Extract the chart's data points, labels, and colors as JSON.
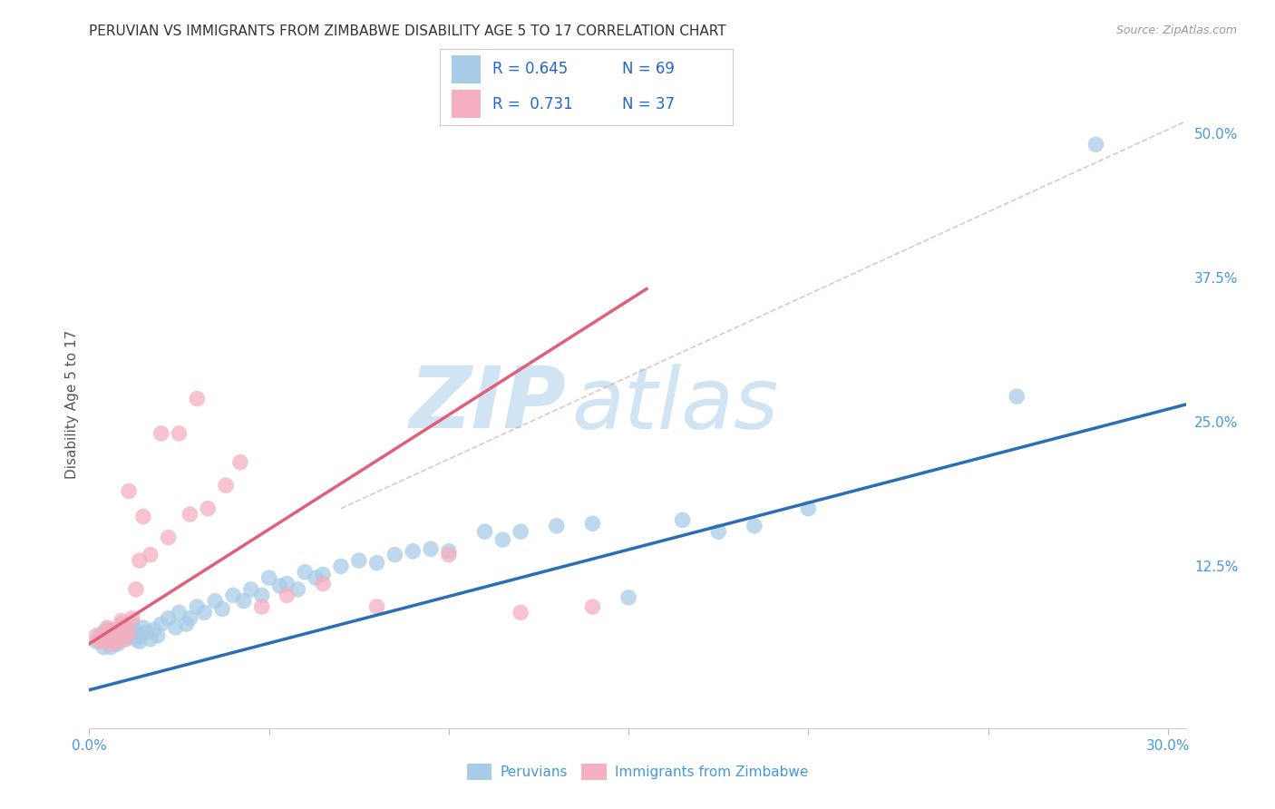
{
  "title": "PERUVIAN VS IMMIGRANTS FROM ZIMBABWE DISABILITY AGE 5 TO 17 CORRELATION CHART",
  "source": "Source: ZipAtlas.com",
  "ylabel": "Disability Age 5 to 17",
  "xlim": [
    0.0,
    0.305
  ],
  "ylim": [
    -0.015,
    0.545
  ],
  "xticks": [
    0.0,
    0.05,
    0.1,
    0.15,
    0.2,
    0.25,
    0.3
  ],
  "yticks_right": [
    0.0,
    0.125,
    0.25,
    0.375,
    0.5
  ],
  "yticklabels_right": [
    "",
    "12.5%",
    "25.0%",
    "37.5%",
    "50.0%"
  ],
  "blue_R": 0.645,
  "blue_N": 69,
  "pink_R": 0.731,
  "pink_N": 37,
  "blue_color": "#a8cce8",
  "pink_color": "#f4afc0",
  "blue_line_color": "#2a6fb5",
  "pink_line_color": "#e0607a",
  "axis_label_color": "#4499dd",
  "legend_text_color": "#2266cc",
  "watermark_color": "#d0e4f4",
  "blue_scatter_x": [
    0.002,
    0.003,
    0.004,
    0.004,
    0.005,
    0.005,
    0.006,
    0.006,
    0.007,
    0.007,
    0.008,
    0.008,
    0.009,
    0.009,
    0.01,
    0.01,
    0.011,
    0.011,
    0.012,
    0.012,
    0.013,
    0.013,
    0.014,
    0.014,
    0.015,
    0.016,
    0.017,
    0.018,
    0.019,
    0.02,
    0.022,
    0.024,
    0.025,
    0.027,
    0.028,
    0.03,
    0.032,
    0.035,
    0.037,
    0.04,
    0.043,
    0.045,
    0.048,
    0.05,
    0.053,
    0.055,
    0.058,
    0.06,
    0.063,
    0.065,
    0.07,
    0.075,
    0.08,
    0.085,
    0.09,
    0.095,
    0.1,
    0.11,
    0.115,
    0.12,
    0.13,
    0.14,
    0.15,
    0.165,
    0.175,
    0.185,
    0.2,
    0.258,
    0.28
  ],
  "blue_scatter_y": [
    0.06,
    0.065,
    0.055,
    0.068,
    0.06,
    0.07,
    0.055,
    0.062,
    0.065,
    0.058,
    0.063,
    0.058,
    0.068,
    0.072,
    0.062,
    0.068,
    0.065,
    0.07,
    0.068,
    0.075,
    0.062,
    0.068,
    0.06,
    0.065,
    0.072,
    0.068,
    0.062,
    0.07,
    0.065,
    0.075,
    0.08,
    0.072,
    0.085,
    0.075,
    0.08,
    0.09,
    0.085,
    0.095,
    0.088,
    0.1,
    0.095,
    0.105,
    0.1,
    0.115,
    0.108,
    0.11,
    0.105,
    0.12,
    0.115,
    0.118,
    0.125,
    0.13,
    0.128,
    0.135,
    0.138,
    0.14,
    0.138,
    0.155,
    0.148,
    0.155,
    0.16,
    0.162,
    0.098,
    0.165,
    0.155,
    0.16,
    0.175,
    0.272,
    0.49
  ],
  "pink_scatter_x": [
    0.002,
    0.003,
    0.004,
    0.005,
    0.005,
    0.006,
    0.006,
    0.007,
    0.007,
    0.008,
    0.008,
    0.009,
    0.009,
    0.01,
    0.01,
    0.011,
    0.011,
    0.012,
    0.013,
    0.014,
    0.015,
    0.017,
    0.02,
    0.022,
    0.025,
    0.028,
    0.03,
    0.033,
    0.038,
    0.042,
    0.048,
    0.055,
    0.065,
    0.08,
    0.1,
    0.12,
    0.14
  ],
  "pink_scatter_y": [
    0.065,
    0.06,
    0.062,
    0.068,
    0.072,
    0.06,
    0.058,
    0.065,
    0.07,
    0.06,
    0.068,
    0.075,
    0.078,
    0.07,
    0.062,
    0.068,
    0.19,
    0.08,
    0.105,
    0.13,
    0.168,
    0.135,
    0.24,
    0.15,
    0.24,
    0.17,
    0.27,
    0.175,
    0.195,
    0.215,
    0.09,
    0.1,
    0.11,
    0.09,
    0.135,
    0.085,
    0.09
  ],
  "blue_line_x": [
    0.0,
    0.305
  ],
  "blue_line_y": [
    0.018,
    0.265
  ],
  "pink_line_x": [
    0.0,
    0.155
  ],
  "pink_line_y": [
    0.058,
    0.365
  ],
  "diag_line_x": [
    0.07,
    0.305
  ],
  "diag_line_y": [
    0.175,
    0.51
  ],
  "background_color": "#ffffff",
  "grid_color": "#d8d8d8",
  "title_fontsize": 11,
  "axis_label_fontsize": 11,
  "tick_label_fontsize": 11
}
